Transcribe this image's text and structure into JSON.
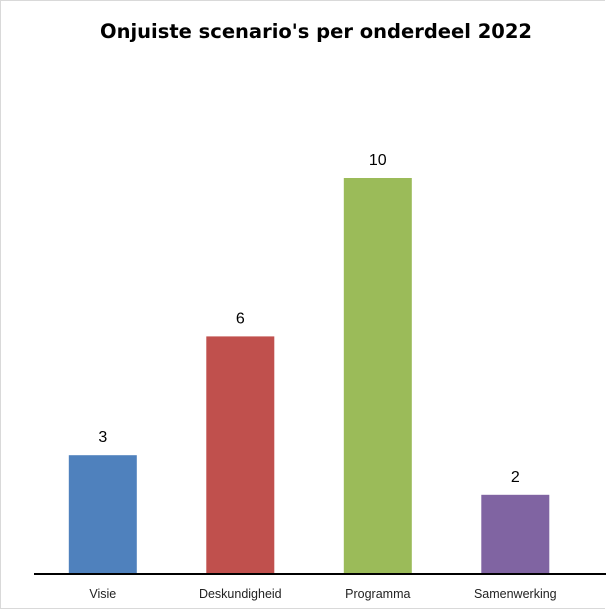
{
  "chart_data": {
    "type": "bar",
    "title": "Onjuiste scenario's per onderdeel 2022",
    "categories": [
      "Visie",
      "Deskundigheid",
      "Programma",
      "Samenwerking"
    ],
    "values": [
      3,
      6,
      10,
      2
    ],
    "colors": [
      "#4f81bd",
      "#c0504d",
      "#9bbb59",
      "#8064a2"
    ],
    "data_labels": [
      "3",
      "6",
      "10",
      "2"
    ],
    "xlabel": "",
    "ylabel": "",
    "ylim": [
      0,
      10
    ],
    "grid": false,
    "legend": "none"
  }
}
